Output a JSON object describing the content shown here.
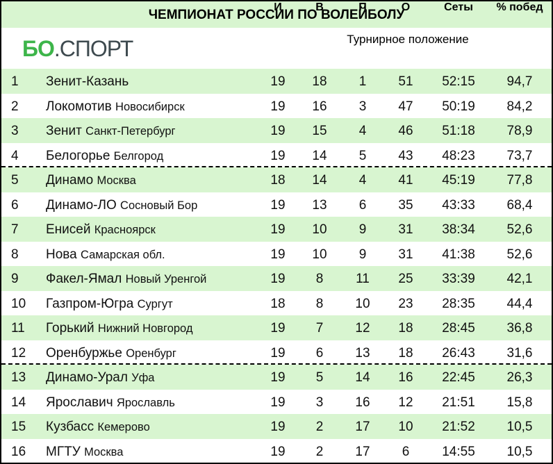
{
  "title": "ЧЕМПИОНАТ РОССИИ ПО ВОЛЕЙБОЛУ",
  "logo": {
    "green": "БО",
    "dark": ".СПОРТ"
  },
  "subtitle": "Турнирное положение",
  "columns": [
    "И",
    "В",
    "П",
    "О",
    "Сеты",
    "% побед"
  ],
  "colors": {
    "row_highlight": "#d8f5d0",
    "logo_green": "#3db54a",
    "logo_dark": "#3e4a4f"
  },
  "rows": [
    {
      "rank": "1",
      "team": "Зенит-Казань",
      "city": "",
      "p": "19",
      "w": "18",
      "l": "1",
      "pts": "51",
      "sets": "52:15",
      "pct": "94,7"
    },
    {
      "rank": "2",
      "team": "Локомотив",
      "city": "Новосибирск",
      "p": "19",
      "w": "16",
      "l": "3",
      "pts": "47",
      "sets": "50:19",
      "pct": "84,2"
    },
    {
      "rank": "3",
      "team": "Зенит",
      "city": "Санкт-Петербург",
      "p": "19",
      "w": "15",
      "l": "4",
      "pts": "46",
      "sets": "51:18",
      "pct": "78,9"
    },
    {
      "rank": "4",
      "team": "Белогорье",
      "city": "Белгород",
      "p": "19",
      "w": "14",
      "l": "5",
      "pts": "43",
      "sets": "48:23",
      "pct": "73,7"
    },
    {
      "rank": "5",
      "team": "Динамо",
      "city": "Москва",
      "p": "18",
      "w": "14",
      "l": "4",
      "pts": "41",
      "sets": "45:19",
      "pct": "77,8"
    },
    {
      "rank": "6",
      "team": "Динамо-ЛО",
      "city": "Сосновый Бор",
      "p": "19",
      "w": "13",
      "l": "6",
      "pts": "35",
      "sets": "43:33",
      "pct": "68,4"
    },
    {
      "rank": "7",
      "team": "Енисей",
      "city": "Красноярск",
      "p": "19",
      "w": "10",
      "l": "9",
      "pts": "31",
      "sets": "38:34",
      "pct": "52,6"
    },
    {
      "rank": "8",
      "team": "Нова",
      "city": "Самарская обл.",
      "p": "19",
      "w": "10",
      "l": "9",
      "pts": "31",
      "sets": "41:38",
      "pct": "52,6"
    },
    {
      "rank": "9",
      "team": "Факел-Ямал",
      "city": "Новый Уренгой",
      "p": "19",
      "w": "8",
      "l": "11",
      "pts": "25",
      "sets": "33:39",
      "pct": "42,1"
    },
    {
      "rank": "10",
      "team": "Газпром-Югра",
      "city": "Сургут",
      "p": "18",
      "w": "8",
      "l": "10",
      "pts": "23",
      "sets": "28:35",
      "pct": "44,4"
    },
    {
      "rank": "11",
      "team": "Горький",
      "city": "Нижний Новгород",
      "p": "19",
      "w": "7",
      "l": "12",
      "pts": "18",
      "sets": "28:45",
      "pct": "36,8"
    },
    {
      "rank": "12",
      "team": "Оренбуржье",
      "city": "Оренбург",
      "p": "19",
      "w": "6",
      "l": "13",
      "pts": "18",
      "sets": "26:43",
      "pct": "31,6"
    },
    {
      "rank": "13",
      "team": "Динамо-Урал",
      "city": "Уфа",
      "p": "19",
      "w": "5",
      "l": "14",
      "pts": "16",
      "sets": "22:45",
      "pct": "26,3"
    },
    {
      "rank": "14",
      "team": "Ярославич",
      "city": "Ярославль",
      "p": "19",
      "w": "3",
      "l": "16",
      "pts": "12",
      "sets": "21:51",
      "pct": "15,8"
    },
    {
      "rank": "15",
      "team": "Кузбасс",
      "city": "Кемерово",
      "p": "19",
      "w": "2",
      "l": "17",
      "pts": "10",
      "sets": "21:52",
      "pct": "10,5"
    },
    {
      "rank": "16",
      "team": "МГТУ",
      "city": "Москва",
      "p": "19",
      "w": "2",
      "l": "17",
      "pts": "6",
      "sets": "14:55",
      "pct": "10,5"
    }
  ]
}
